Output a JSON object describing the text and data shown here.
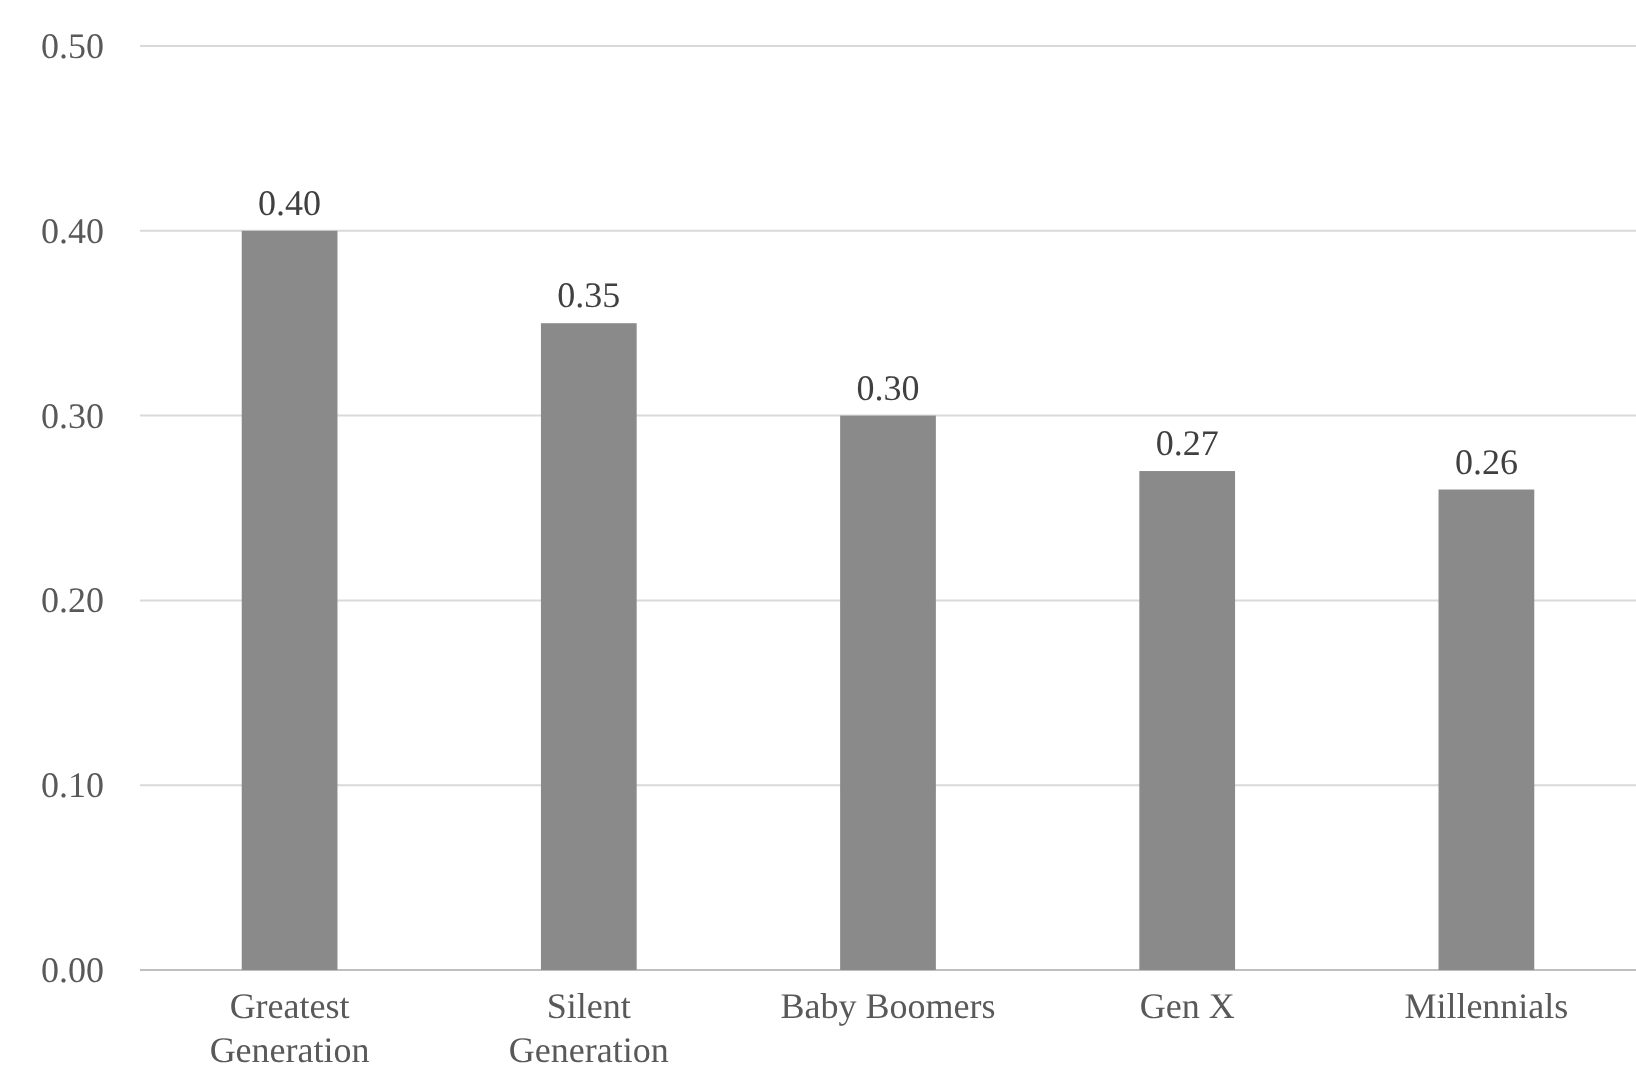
{
  "chart_data": {
    "type": "bar",
    "categories": [
      "Greatest Generation",
      "Silent Generation",
      "Baby Boomers",
      "Gen X",
      "Millennials"
    ],
    "values": [
      0.4,
      0.35,
      0.3,
      0.27,
      0.26
    ],
    "value_labels": [
      "0.40",
      "0.35",
      "0.30",
      "0.27",
      "0.26"
    ],
    "color": "#8a8a8a",
    "ylim": [
      0,
      0.5
    ],
    "yticks": [
      {
        "value": 0,
        "label": "0.00"
      },
      {
        "value": 0.1,
        "label": "0.10"
      },
      {
        "value": 0.2,
        "label": "0.20"
      },
      {
        "value": 0.3,
        "label": "0.30"
      },
      {
        "value": 0.4,
        "label": "0.40"
      },
      {
        "value": 0.5,
        "label": "0.50"
      }
    ],
    "grid": "y"
  }
}
